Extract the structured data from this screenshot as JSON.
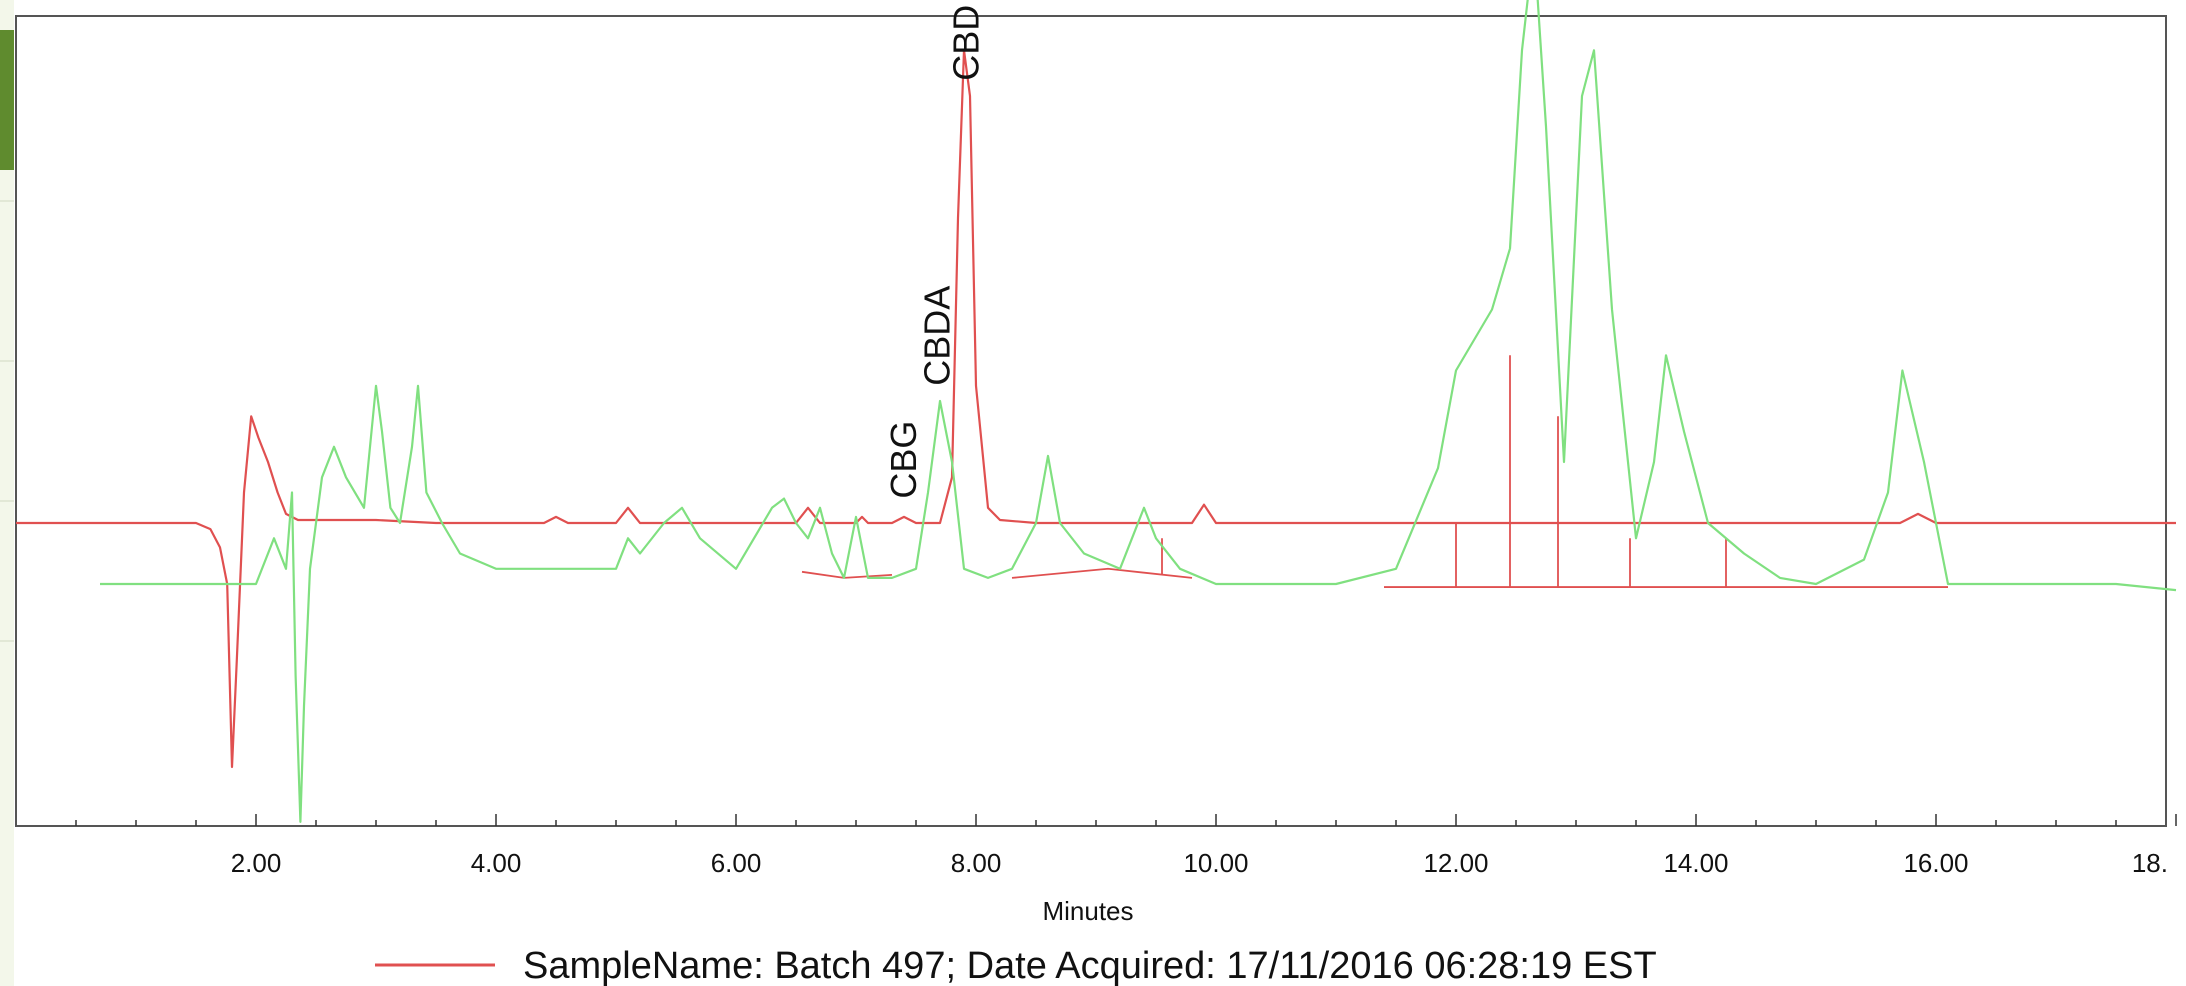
{
  "chart_data": {
    "type": "line",
    "xlabel": "Minutes",
    "xlim": [
      0,
      18
    ],
    "x_ticks": [
      "2.00",
      "4.00",
      "6.00",
      "8.00",
      "10.00",
      "12.00",
      "14.00",
      "16.00",
      "18."
    ],
    "x_tick_values": [
      2,
      4,
      6,
      8,
      10,
      12,
      14,
      16,
      18
    ],
    "ylim": [
      -1.1,
      2.0
    ],
    "grid": false,
    "legend": [
      {
        "series": "Batch 497",
        "text": "SampleName: Batch 497;    Date Acquired: 17/11/2016 06:28:19 EST",
        "color": "#e05050"
      }
    ],
    "peak_labels": [
      {
        "text": "CBG",
        "x": 7.4,
        "y": 0.08
      },
      {
        "text": "CBDA",
        "x": 7.68,
        "y": 0.45
      },
      {
        "text": "CBD",
        "x": 7.92,
        "y": 1.45
      }
    ],
    "series": [
      {
        "name": "Batch 497",
        "color": "#e05050",
        "x": [
          0.0,
          1.5,
          1.62,
          1.7,
          1.76,
          1.8,
          1.84,
          1.9,
          1.96,
          2.02,
          2.1,
          2.18,
          2.25,
          2.35,
          2.5,
          3.0,
          3.5,
          4.0,
          4.4,
          4.5,
          4.6,
          5.0,
          5.1,
          5.2,
          5.5,
          6.0,
          6.5,
          6.6,
          6.7,
          6.8,
          7.0,
          7.05,
          7.1,
          7.3,
          7.4,
          7.5,
          7.7,
          7.8,
          7.85,
          7.9,
          7.95,
          8.0,
          8.1,
          8.2,
          8.5,
          9.0,
          9.8,
          9.9,
          10.0,
          10.5,
          11.0,
          11.5,
          12.0,
          12.5,
          13.0,
          13.5,
          14.0,
          15.0,
          15.7,
          15.85,
          16.0,
          16.5,
          17.0,
          18.0
        ],
        "y": [
          0.0,
          0.0,
          -0.02,
          -0.08,
          -0.2,
          -0.8,
          -0.45,
          0.1,
          0.35,
          0.28,
          0.2,
          0.1,
          0.03,
          0.01,
          0.01,
          0.01,
          0.0,
          0.0,
          0.0,
          0.02,
          0.0,
          0.0,
          0.05,
          0.0,
          0.0,
          0.0,
          0.0,
          0.05,
          0.0,
          0.0,
          0.0,
          0.02,
          0.0,
          0.0,
          0.02,
          0.0,
          0.0,
          0.15,
          1.0,
          1.55,
          1.4,
          0.45,
          0.05,
          0.01,
          0.0,
          0.0,
          0.0,
          0.06,
          0.0,
          0.0,
          0.0,
          0.0,
          0.0,
          0.0,
          0.0,
          0.0,
          0.0,
          0.0,
          0.0,
          0.03,
          0.0,
          0.0,
          0.0,
          0.0
        ]
      },
      {
        "name": "",
        "color": "#80e080",
        "x": [
          0.7,
          2.0,
          2.15,
          2.25,
          2.3,
          2.33,
          2.37,
          2.4,
          2.45,
          2.55,
          2.65,
          2.75,
          2.9,
          3.0,
          3.05,
          3.12,
          3.2,
          3.3,
          3.35,
          3.42,
          3.55,
          3.7,
          4.0,
          4.5,
          5.0,
          5.1,
          5.2,
          5.4,
          5.55,
          5.7,
          6.0,
          6.3,
          6.4,
          6.5,
          6.6,
          6.7,
          6.8,
          6.9,
          7.0,
          7.1,
          7.3,
          7.5,
          7.6,
          7.7,
          7.8,
          7.9,
          8.1,
          8.3,
          8.5,
          8.6,
          8.7,
          8.9,
          9.2,
          9.4,
          9.5,
          9.7,
          10.0,
          11.0,
          11.5,
          11.85,
          12.0,
          12.15,
          12.3,
          12.45,
          12.55,
          12.65,
          12.75,
          12.9,
          13.05,
          13.15,
          13.3,
          13.5,
          13.65,
          13.75,
          13.9,
          14.1,
          14.4,
          14.7,
          15.0,
          15.4,
          15.6,
          15.72,
          15.9,
          16.1,
          16.5,
          17.0,
          17.5,
          18.0
        ],
        "y": [
          -0.2,
          -0.2,
          -0.05,
          -0.15,
          0.1,
          -0.5,
          -0.98,
          -0.6,
          -0.15,
          0.15,
          0.25,
          0.15,
          0.05,
          0.45,
          0.3,
          0.05,
          0.0,
          0.25,
          0.45,
          0.1,
          0.0,
          -0.1,
          -0.15,
          -0.15,
          -0.15,
          -0.05,
          -0.1,
          0.0,
          0.05,
          -0.05,
          -0.15,
          0.05,
          0.08,
          0.0,
          -0.05,
          0.05,
          -0.1,
          -0.18,
          0.02,
          -0.18,
          -0.18,
          -0.15,
          0.1,
          0.4,
          0.2,
          -0.15,
          -0.18,
          -0.15,
          0.0,
          0.22,
          0.0,
          -0.1,
          -0.15,
          0.05,
          -0.05,
          -0.15,
          -0.2,
          -0.2,
          -0.15,
          0.18,
          0.5,
          0.6,
          0.7,
          0.9,
          1.55,
          1.9,
          1.3,
          0.2,
          1.4,
          1.55,
          0.7,
          -0.05,
          0.2,
          0.55,
          0.3,
          0.0,
          -0.1,
          -0.18,
          -0.2,
          -0.12,
          0.1,
          0.5,
          0.2,
          -0.2,
          -0.2,
          -0.2,
          -0.2,
          -0.22
        ]
      }
    ]
  }
}
